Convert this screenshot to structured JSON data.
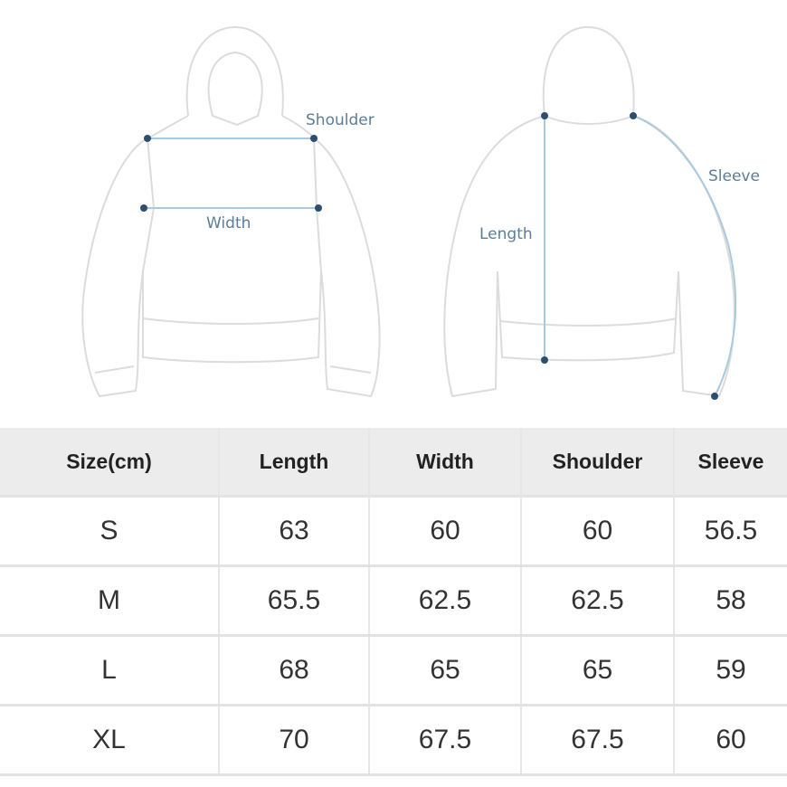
{
  "diagram": {
    "labels": {
      "shoulder": "Shoulder",
      "width": "Width",
      "length": "Length",
      "sleeve": "Sleeve"
    },
    "colors": {
      "outline": "#dcdcdc",
      "measure_line": "#a9c9e0",
      "dot": "#2c4f6d",
      "label": "#5b7d99"
    }
  },
  "table": {
    "headers": [
      "Size(cm)",
      "Length",
      "Width",
      "Shoulder",
      "Sleeve"
    ],
    "rows": [
      [
        "S",
        "63",
        "60",
        "60",
        "56.5"
      ],
      [
        "M",
        "65.5",
        "62.5",
        "62.5",
        "58"
      ],
      [
        "L",
        "68",
        "65",
        "65",
        "59"
      ],
      [
        "XL",
        "70",
        "67.5",
        "67.5",
        "60"
      ]
    ],
    "colors": {
      "header_bg": "#ececec",
      "border": "#e3e3e3"
    }
  }
}
